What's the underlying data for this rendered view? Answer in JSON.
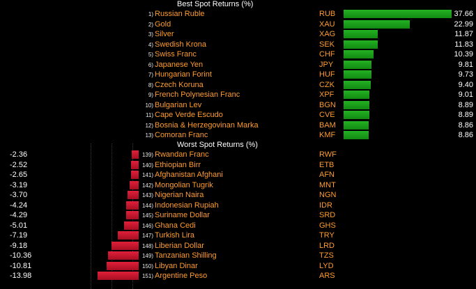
{
  "best": {
    "title": "Best Spot Returns (%)",
    "rows": [
      {
        "rank": "1)",
        "name": "Russian Ruble",
        "code": "RUB",
        "value": "37.66",
        "num": 37.66
      },
      {
        "rank": "2)",
        "name": "Gold",
        "code": "XAU",
        "value": "22.99",
        "num": 22.99
      },
      {
        "rank": "3)",
        "name": "Silver",
        "code": "XAG",
        "value": "11.87",
        "num": 11.87
      },
      {
        "rank": "4)",
        "name": "Swedish Krona",
        "code": "SEK",
        "value": "11.83",
        "num": 11.83
      },
      {
        "rank": "5)",
        "name": "Swiss Franc",
        "code": "CHF",
        "value": "10.39",
        "num": 10.39
      },
      {
        "rank": "6)",
        "name": "Japanese Yen",
        "code": "JPY",
        "value": "9.81",
        "num": 9.81
      },
      {
        "rank": "7)",
        "name": "Hungarian Forint",
        "code": "HUF",
        "value": "9.73",
        "num": 9.73
      },
      {
        "rank": "8)",
        "name": "Czech Koruna",
        "code": "CZK",
        "value": "9.40",
        "num": 9.4
      },
      {
        "rank": "9)",
        "name": "French Polynesian Franc",
        "code": "XPF",
        "value": "9.01",
        "num": 9.01
      },
      {
        "rank": "10)",
        "name": "Bulgarian Lev",
        "code": "BGN",
        "value": "8.89",
        "num": 8.89
      },
      {
        "rank": "11)",
        "name": "Cape Verde Escudo",
        "code": "CVE",
        "value": "8.89",
        "num": 8.89
      },
      {
        "rank": "12)",
        "name": "Bosnia & Herzegovinan Marka",
        "code": "BAM",
        "value": "8.86",
        "num": 8.86
      },
      {
        "rank": "13)",
        "name": "Comoran Franc",
        "code": "KMF",
        "value": "8.86",
        "num": 8.86
      }
    ]
  },
  "worst": {
    "title": "Worst Spot Returns (%)",
    "rows": [
      {
        "rank": "139)",
        "name": "Rwandan Franc",
        "code": "RWF",
        "value": "-2.36",
        "num": -2.36
      },
      {
        "rank": "140)",
        "name": "Ethiopian Birr",
        "code": "ETB",
        "value": "-2.52",
        "num": -2.52
      },
      {
        "rank": "141)",
        "name": "Afghanistan Afghani",
        "code": "AFN",
        "value": "-2.65",
        "num": -2.65
      },
      {
        "rank": "142)",
        "name": "Mongolian Tugrik",
        "code": "MNT",
        "value": "-3.19",
        "num": -3.19
      },
      {
        "rank": "143)",
        "name": "Nigerian Naira",
        "code": "NGN",
        "value": "-3.70",
        "num": -3.7
      },
      {
        "rank": "144)",
        "name": "Indonesian Rupiah",
        "code": "IDR",
        "value": "-4.24",
        "num": -4.24
      },
      {
        "rank": "145)",
        "name": "Suriname Dollar",
        "code": "SRD",
        "value": "-4.29",
        "num": -4.29
      },
      {
        "rank": "146)",
        "name": "Ghana Cedi",
        "code": "GHS",
        "value": "-5.01",
        "num": -5.01
      },
      {
        "rank": "147)",
        "name": "Turkish Lira",
        "code": "TRY",
        "value": "-7.19",
        "num": -7.19
      },
      {
        "rank": "148)",
        "name": "Liberian Dollar",
        "code": "LRD",
        "value": "-9.18",
        "num": -9.18
      },
      {
        "rank": "149)",
        "name": "Tanzanian Shilling",
        "code": "TZS",
        "value": "-10.36",
        "num": -10.36
      },
      {
        "rank": "150)",
        "name": "Libyan Dinar",
        "code": "LYD",
        "value": "-10.81",
        "num": -10.81
      },
      {
        "rank": "151)",
        "name": "Argentine Peso",
        "code": "ARS",
        "value": "-13.98",
        "num": -13.98
      }
    ]
  },
  "colors": {
    "background": "#000000",
    "label": "#ff9c2c",
    "positive_bar": "#1e9e1e",
    "negative_bar": "#c8152e"
  }
}
